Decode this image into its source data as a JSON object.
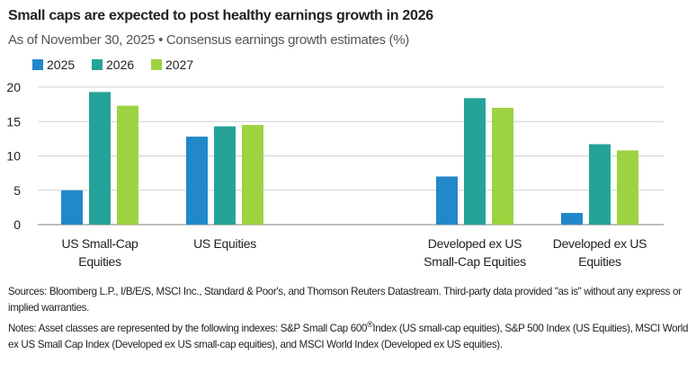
{
  "chart_data": {
    "type": "bar",
    "title": "Small caps are expected to post healthy earnings growth in 2026",
    "subtitle": "As of November 30, 2025 • Consensus earnings growth estimates (%)",
    "categories": [
      [
        "US Small-Cap",
        "Equities"
      ],
      [
        "US Equities"
      ],
      [
        "Developed ex US",
        "Small-Cap Equities"
      ],
      [
        "Developed ex US",
        "Equities"
      ]
    ],
    "series": [
      {
        "name": "2025",
        "color": "#2188c9",
        "values": [
          5.0,
          12.8,
          7.0,
          1.7
        ]
      },
      {
        "name": "2026",
        "color": "#26a398",
        "values": [
          19.3,
          14.3,
          18.4,
          11.7
        ]
      },
      {
        "name": "2027",
        "color": "#9dd341",
        "values": [
          17.3,
          14.5,
          17.0,
          10.8
        ]
      }
    ],
    "ylim": [
      0,
      20
    ],
    "yticks": [
      "0",
      "5",
      "10",
      "15",
      "20"
    ],
    "grid": true,
    "legend": "top-left",
    "xlabel": "",
    "ylabel": ""
  },
  "footer": {
    "sources": "Sources: Bloomberg L.P., I/B/E/S, MSCI Inc., Standard & Poor's, and Thomson Reuters Datastream. Third-party data provided \"as is\" without any express or implied warranties.",
    "notes_a": "Notes: Asset classes are represented by the following indexes: S&P Small Cap 600",
    "notes_reg": "®",
    "notes_b": "Index (US small-cap equities), S&P 500 Index (US Equities), MSCI World ex US Small Cap Index (Developed ex US small-cap equities), and MSCI World Index (Developed ex US equities)."
  }
}
